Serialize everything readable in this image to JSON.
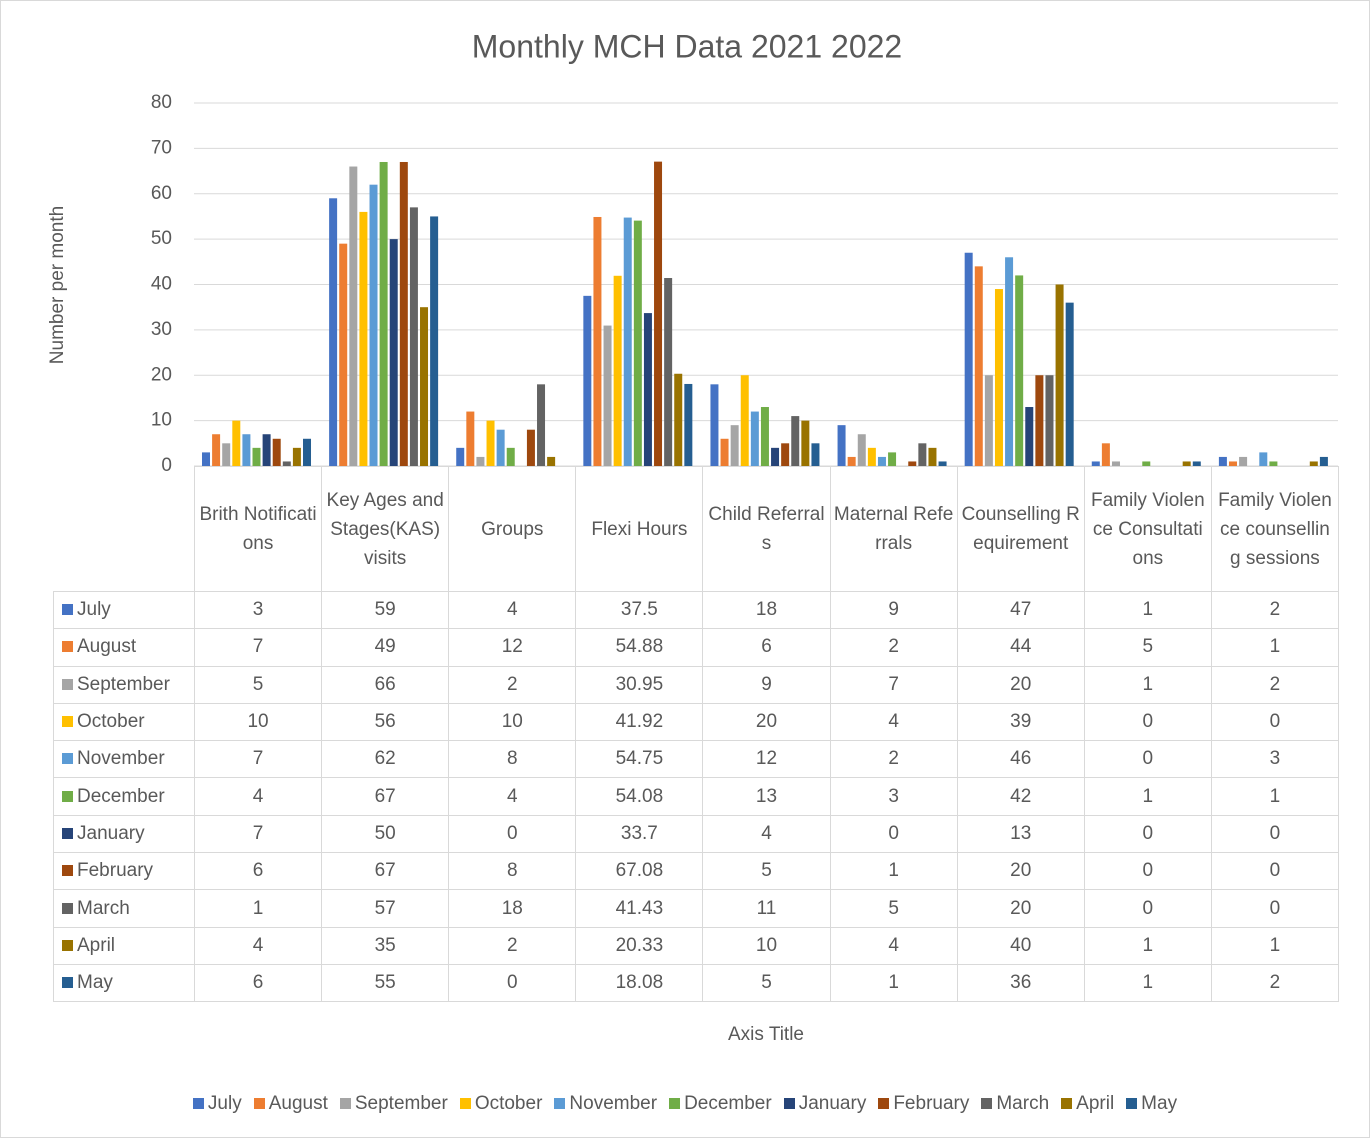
{
  "chart_data": {
    "type": "bar",
    "title": "Monthly MCH Data 2021 2022",
    "y_label": "Number per month",
    "x_label": "Axis Title",
    "categories": [
      "Brith Notifications",
      "Key Ages and Stages(KAS) visits",
      "Groups",
      "Flexi Hours",
      "Child Referrals",
      "Maternal Referrals",
      "Counselling Requirement",
      "Family Violence Consultations",
      "Family Violence counselling sessions"
    ],
    "series": [
      {
        "name": "July",
        "color": "#4472c4",
        "values": [
          3,
          59,
          4,
          37.5,
          18,
          9,
          47,
          1,
          2
        ]
      },
      {
        "name": "August",
        "color": "#ed7d31",
        "values": [
          7,
          49,
          12,
          54.88,
          6,
          2,
          44,
          5,
          1
        ]
      },
      {
        "name": "September",
        "color": "#a5a5a5",
        "values": [
          5,
          66,
          2,
          30.95,
          9,
          7,
          20,
          1,
          2
        ]
      },
      {
        "name": "October",
        "color": "#ffc000",
        "values": [
          10,
          56,
          10,
          41.92,
          20,
          4,
          39,
          0,
          0
        ]
      },
      {
        "name": "November",
        "color": "#5b9bd5",
        "values": [
          7,
          62,
          8,
          54.75,
          12,
          2,
          46,
          0,
          3
        ]
      },
      {
        "name": "December",
        "color": "#70ad47",
        "values": [
          4,
          67,
          4,
          54.08,
          13,
          3,
          42,
          1,
          1
        ]
      },
      {
        "name": "January",
        "color": "#264478",
        "values": [
          7,
          50,
          0,
          33.7,
          4,
          0,
          13,
          0,
          0
        ]
      },
      {
        "name": "February",
        "color": "#9e480e",
        "values": [
          6,
          67,
          8,
          67.08,
          5,
          1,
          20,
          0,
          0
        ]
      },
      {
        "name": "March",
        "color": "#636363",
        "values": [
          1,
          57,
          18,
          41.43,
          11,
          5,
          20,
          0,
          0
        ]
      },
      {
        "name": "April",
        "color": "#997300",
        "values": [
          4,
          35,
          2,
          20.33,
          10,
          4,
          40,
          1,
          1
        ]
      },
      {
        "name": "May",
        "color": "#255e91",
        "values": [
          6,
          55,
          0,
          18.08,
          5,
          1,
          36,
          1,
          2
        ]
      }
    ],
    "ylim": [
      0,
      80
    ],
    "yticks": [
      0,
      10,
      20,
      30,
      40,
      50,
      60,
      70,
      80
    ],
    "grid": true,
    "legend": "bottom",
    "data_table": true
  }
}
